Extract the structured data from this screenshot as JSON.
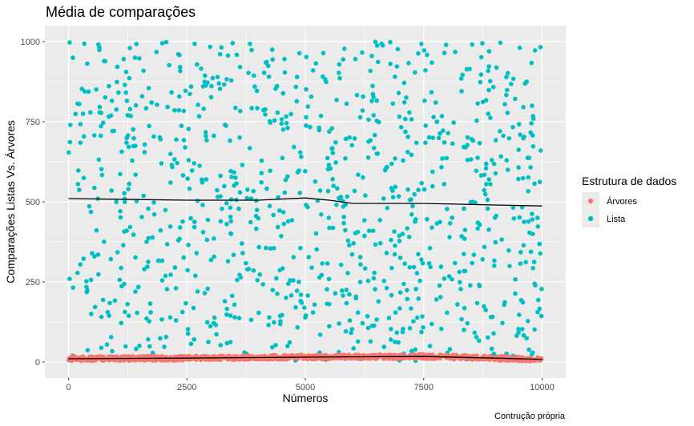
{
  "chart_data": {
    "type": "scatter",
    "title": "Média de comparações",
    "xlabel": "Números",
    "ylabel": "Comparações Listas Vs. Árvores",
    "caption": "Contrução própria",
    "xlim": [
      -500,
      10500
    ],
    "ylim": [
      -50,
      1050
    ],
    "x_ticks": [
      0,
      2500,
      5000,
      7500,
      10000
    ],
    "y_ticks": [
      0,
      250,
      500,
      750,
      1000
    ],
    "x_tick_labels": [
      "0",
      "2500",
      "5000",
      "7500",
      "10000"
    ],
    "y_tick_labels": [
      "0",
      "250",
      "500",
      "750",
      "1000"
    ],
    "grid": true,
    "legend": {
      "title": "Estrutura de dados",
      "position": "right",
      "entries": [
        {
          "label": "Árvores",
          "color": "#F8766D"
        },
        {
          "label": "Lista",
          "color": "#00BFC4"
        }
      ]
    },
    "series": [
      {
        "name": "Árvores",
        "color": "#F8766D",
        "n_points": 1000,
        "x_range": [
          0,
          10000
        ],
        "y_range": [
          0,
          30
        ],
        "distribution": "uniform",
        "trend": {
          "x": [
            0,
            2500,
            5000,
            6000,
            7500,
            9000,
            10000
          ],
          "y": [
            10,
            12,
            15,
            16,
            17,
            12,
            8
          ]
        }
      },
      {
        "name": "Lista",
        "color": "#00BFC4",
        "n_points": 1000,
        "x_range": [
          0,
          10000
        ],
        "y_range": [
          0,
          1000
        ],
        "distribution": "uniform",
        "trend": {
          "x": [
            0,
            2500,
            4000,
            5000,
            5500,
            6000,
            7500,
            9000,
            10000
          ],
          "y": [
            510,
            505,
            505,
            512,
            505,
            495,
            495,
            490,
            487
          ]
        }
      }
    ]
  }
}
